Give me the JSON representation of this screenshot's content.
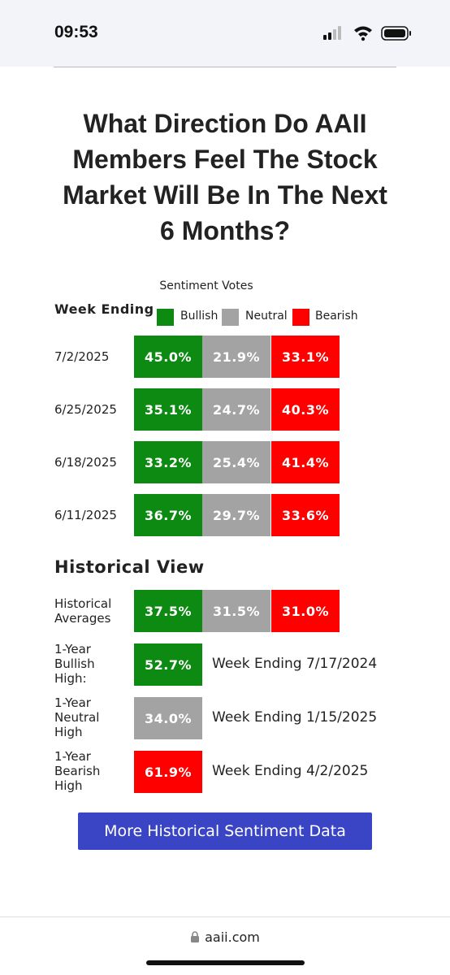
{
  "status_bar": {
    "time": "09:53"
  },
  "title": "What Direction Do AAII Members Feel The Stock Market Will Be In The Next 6 Months?",
  "sentiment_label": "Sentiment Votes",
  "week_ending_label": "Week Ending",
  "legend": [
    "Bullish",
    "Neutral",
    "Bearish"
  ],
  "rows": [
    {
      "week": "7/2/2025",
      "values": [
        "45.0%",
        "21.9%",
        "33.1%"
      ]
    },
    {
      "week": "6/25/2025",
      "values": [
        "35.1%",
        "24.7%",
        "40.3%"
      ]
    },
    {
      "week": "6/18/2025",
      "values": [
        "33.2%",
        "25.4%",
        "41.4%"
      ]
    },
    {
      "week": "6/11/2025",
      "values": [
        "36.7%",
        "29.7%",
        "33.6%"
      ]
    }
  ],
  "historical": {
    "title": "Historical View",
    "averages": {
      "label": "Historical Averages",
      "values": [
        "37.5%",
        "31.5%",
        "31.0%"
      ]
    },
    "highs": [
      {
        "label": "1-Year Bullish High:",
        "value": "52.7%",
        "week": "Week Ending 7/17/2024"
      },
      {
        "label": "1-Year Neutral High",
        "value": "34.0%",
        "week": "Week Ending 1/15/2025"
      },
      {
        "label": "1-Year Bearish High",
        "value": "61.9%",
        "week": "Week Ending 4/2/2025"
      }
    ]
  },
  "button": "More Historical Sentiment Data",
  "url": "aaii.com"
}
